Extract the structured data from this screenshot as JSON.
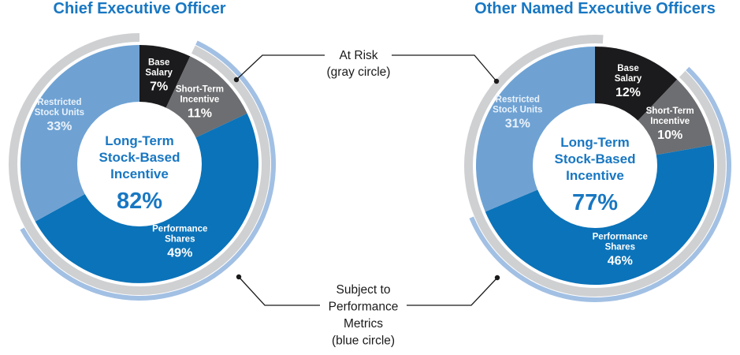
{
  "colors": {
    "title": "#1877c2",
    "base_salary": "#1b1a1c",
    "short_term": "#6d6e71",
    "rsu": "#6fa2d3",
    "performance": "#0b73b9",
    "gray_ring": "#cfd0d2",
    "blue_ring": "#a2c0e3",
    "center_text": "#1877c2",
    "white_text": "#ffffff",
    "rsu_text": "#e9f1fa",
    "leader_line": "#1a1a1a"
  },
  "chart_data": [
    {
      "type": "pie",
      "title": "Chief Executive Officer",
      "segments": [
        {
          "key": "base_salary",
          "label_lines": [
            "Base",
            "Salary"
          ],
          "value": 7,
          "value_label": "7%"
        },
        {
          "key": "short_term",
          "label_lines": [
            "Short-Term",
            "Incentive"
          ],
          "value": 11,
          "value_label": "11%"
        },
        {
          "key": "performance",
          "label_lines": [
            "Performance",
            "Shares"
          ],
          "value": 49,
          "value_label": "49%"
        },
        {
          "key": "rsu",
          "label_lines": [
            "Restricted",
            "Stock Units"
          ],
          "value": 33,
          "value_label": "33%"
        }
      ],
      "center_lines": [
        "Long-Term",
        "Stock-Based",
        "Incentive"
      ],
      "center_value": "82%",
      "at_risk_value": 93,
      "performance_metrics_value": 60
    },
    {
      "type": "pie",
      "title": "Other Named Executive Officers",
      "segments": [
        {
          "key": "base_salary",
          "label_lines": [
            "Base",
            "Salary"
          ],
          "value": 12,
          "value_label": "12%"
        },
        {
          "key": "short_term",
          "label_lines": [
            "Short-Term",
            "Incentive"
          ],
          "value": 10,
          "value_label": "10%"
        },
        {
          "key": "performance",
          "label_lines": [
            "Performance",
            "Shares"
          ],
          "value": 46,
          "value_label": "46%"
        },
        {
          "key": "rsu",
          "label_lines": [
            "Restricted",
            "Stock Units"
          ],
          "value": 31,
          "value_label": "31%"
        }
      ],
      "center_lines": [
        "Long-Term",
        "Stock-Based",
        "Incentive"
      ],
      "center_value": "77%",
      "at_risk_value": 88,
      "performance_metrics_value": 56
    }
  ],
  "callouts": {
    "at_risk": [
      "At Risk",
      "(gray circle)"
    ],
    "performance": [
      "Subject to",
      "Performance",
      "Metrics",
      "(blue circle)"
    ]
  }
}
